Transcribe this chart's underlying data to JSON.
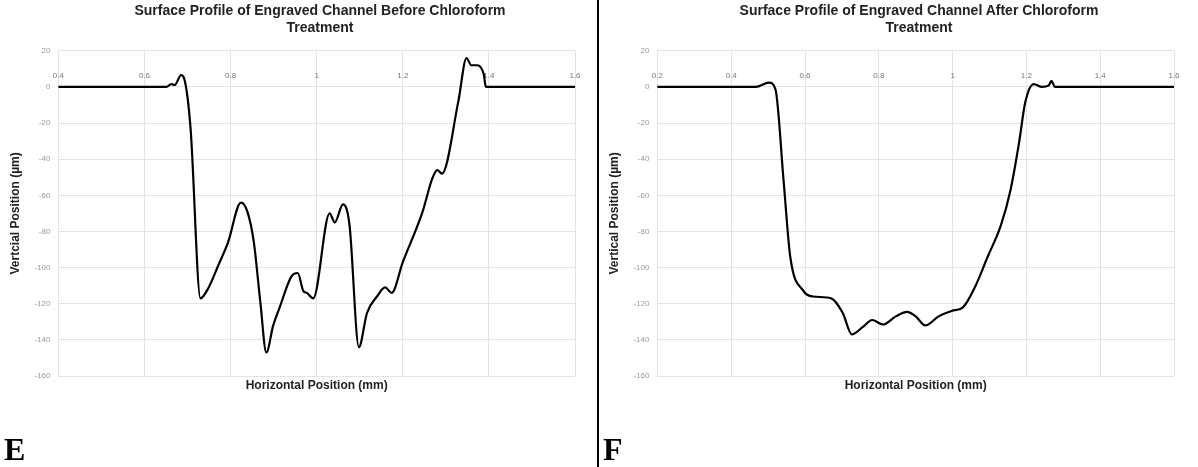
{
  "chart_data": [
    {
      "type": "line",
      "title": "Surface Profile of Engraved Channel Before Chloroform Treatment",
      "xlabel": "Horizontal Position (mm)",
      "ylabel": "Vertcial Position (µm)",
      "annotations": [
        "E"
      ],
      "xlim": [
        0.4,
        1.6
      ],
      "ylim": [
        -160,
        20
      ],
      "xticks": [
        0.4,
        0.6,
        0.8,
        1,
        1.2,
        1.4,
        1.6
      ],
      "yticks": [
        -160,
        -140,
        -120,
        -100,
        -80,
        -60,
        -40,
        -20,
        0,
        20
      ],
      "grid": true,
      "series": [
        {
          "color": "#000000",
          "x": [
            0.4,
            0.651,
            0.662,
            0.67,
            0.685,
            0.692,
            0.707,
            0.73,
            0.749,
            0.771,
            0.794,
            0.824,
            0.839,
            0.854,
            0.869,
            0.883,
            0.899,
            0.914,
            0.941,
            0.956,
            0.969,
            0.977,
            0.992,
            1.03,
            1.042,
            1.061,
            1.076,
            1.098,
            1.117,
            1.14,
            1.159,
            1.174,
            1.2,
            1.246,
            1.268,
            1.28,
            1.291,
            1.329,
            1.348,
            1.359,
            1.373,
            1.388,
            1.393,
            1.6
          ],
          "values": [
            0,
            0,
            1.6,
            1,
            6.5,
            4.7,
            -23,
            -117,
            -111,
            -99,
            -86,
            -64,
            -69,
            -86,
            -119,
            -147,
            -132,
            -122,
            -105,
            -103,
            -113,
            -114,
            -117,
            -70,
            -75,
            -65,
            -76,
            -144,
            -125,
            -116,
            -111,
            -114,
            -97,
            -69,
            -51,
            -46,
            -48,
            -8,
            16,
            12,
            12,
            7,
            0,
            0
          ]
        }
      ]
    },
    {
      "type": "line",
      "title": "Surface Profile of Engraved Channel After Chloroform Treatment",
      "xlabel": "Horizontal Position (mm)",
      "ylabel": "Vertical Position (µm)",
      "annotations": [
        "F"
      ],
      "xlim": [
        0.2,
        1.6
      ],
      "ylim": [
        -160,
        20
      ],
      "xticks": [
        0.2,
        0.4,
        0.6,
        0.8,
        1,
        1.2,
        1.4,
        1.6
      ],
      "yticks": [
        -160,
        -140,
        -120,
        -100,
        -80,
        -60,
        -40,
        -20,
        0,
        20
      ],
      "grid": true,
      "series": [
        {
          "color": "#000000",
          "x": [
            0.2,
            0.467,
            0.502,
            0.52,
            0.542,
            0.56,
            0.596,
            0.622,
            0.671,
            0.702,
            0.727,
            0.756,
            0.782,
            0.811,
            0.846,
            0.877,
            0.9,
            0.926,
            0.962,
            0.997,
            1.028,
            1.06,
            1.095,
            1.131,
            1.157,
            1.18,
            1.197,
            1.22,
            1.242,
            1.26,
            1.268,
            1.277,
            1.6
          ],
          "values": [
            0,
            0,
            2.4,
            -1.4,
            -52,
            -94,
            -113,
            -116,
            -117,
            -125,
            -137,
            -133,
            -129,
            -131.5,
            -127,
            -124.5,
            -127,
            -132,
            -127,
            -124,
            -122,
            -111,
            -94,
            -76.5,
            -57,
            -31,
            -8.4,
            1.6,
            0,
            0.7,
            3.3,
            0,
            0
          ]
        }
      ]
    }
  ]
}
